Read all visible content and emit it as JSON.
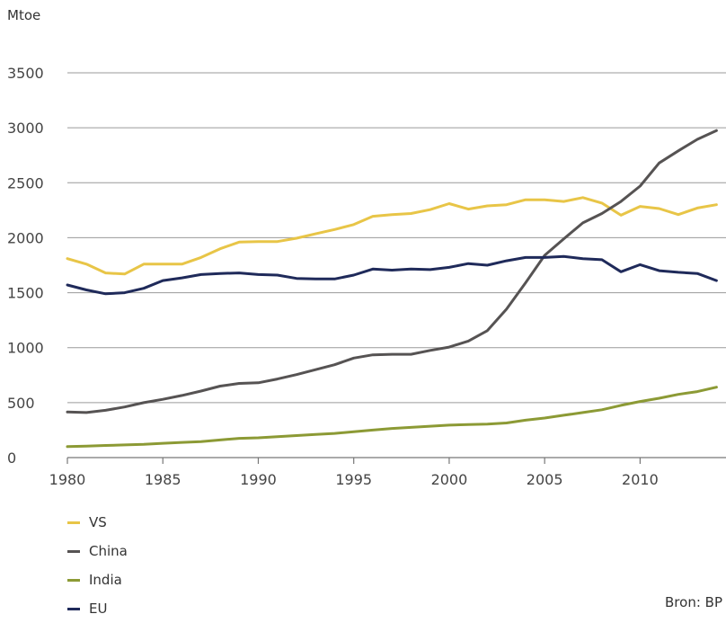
{
  "chart_data": {
    "type": "line",
    "title": "",
    "ylabel": "Mtoe",
    "xlabel": "",
    "source": "Bron: BP",
    "xlim": [
      1980,
      2014.5
    ],
    "ylim": [
      0,
      3500
    ],
    "xticks": [
      1980,
      1985,
      1990,
      1995,
      2000,
      2005,
      2010
    ],
    "yticks": [
      0,
      500,
      1000,
      1500,
      2000,
      2500,
      3000,
      3500
    ],
    "grid": true,
    "legend_position": "bottom-left",
    "x": [
      1980,
      1981,
      1982,
      1983,
      1984,
      1985,
      1986,
      1987,
      1988,
      1989,
      1990,
      1991,
      1992,
      1993,
      1994,
      1995,
      1996,
      1997,
      1998,
      1999,
      2000,
      2001,
      2002,
      2003,
      2004,
      2005,
      2006,
      2007,
      2008,
      2009,
      2010,
      2011,
      2012,
      2013,
      2014
    ],
    "series": [
      {
        "name": "VS",
        "color": "#e8c547",
        "values": [
          1810,
          1760,
          1680,
          1670,
          1760,
          1760,
          1760,
          1820,
          1900,
          1960,
          1965,
          1965,
          1995,
          2035,
          2075,
          2120,
          2195,
          2210,
          2220,
          2255,
          2310,
          2260,
          2290,
          2300,
          2345,
          2345,
          2330,
          2365,
          2315,
          2205,
          2285,
          2265,
          2210,
          2270,
          2300
        ]
      },
      {
        "name": "China",
        "color": "#565353",
        "values": [
          415,
          410,
          430,
          460,
          500,
          530,
          565,
          605,
          650,
          675,
          680,
          715,
          755,
          800,
          845,
          905,
          935,
          940,
          940,
          975,
          1005,
          1060,
          1155,
          1350,
          1590,
          1840,
          1990,
          2135,
          2220,
          2330,
          2470,
          2680,
          2790,
          2895,
          2975
        ]
      },
      {
        "name": "India",
        "color": "#8c9a35",
        "values": [
          100,
          105,
          110,
          115,
          120,
          130,
          138,
          145,
          160,
          175,
          180,
          190,
          200,
          210,
          220,
          235,
          250,
          265,
          275,
          285,
          295,
          300,
          305,
          315,
          340,
          360,
          385,
          410,
          435,
          475,
          510,
          540,
          575,
          600,
          640
        ]
      },
      {
        "name": "EU",
        "color": "#1f2a5a",
        "values": [
          1570,
          1525,
          1490,
          1500,
          1540,
          1610,
          1635,
          1665,
          1675,
          1680,
          1665,
          1660,
          1630,
          1625,
          1625,
          1660,
          1715,
          1705,
          1715,
          1710,
          1730,
          1765,
          1750,
          1790,
          1820,
          1820,
          1830,
          1810,
          1800,
          1690,
          1755,
          1700,
          1685,
          1675,
          1610
        ]
      }
    ]
  }
}
